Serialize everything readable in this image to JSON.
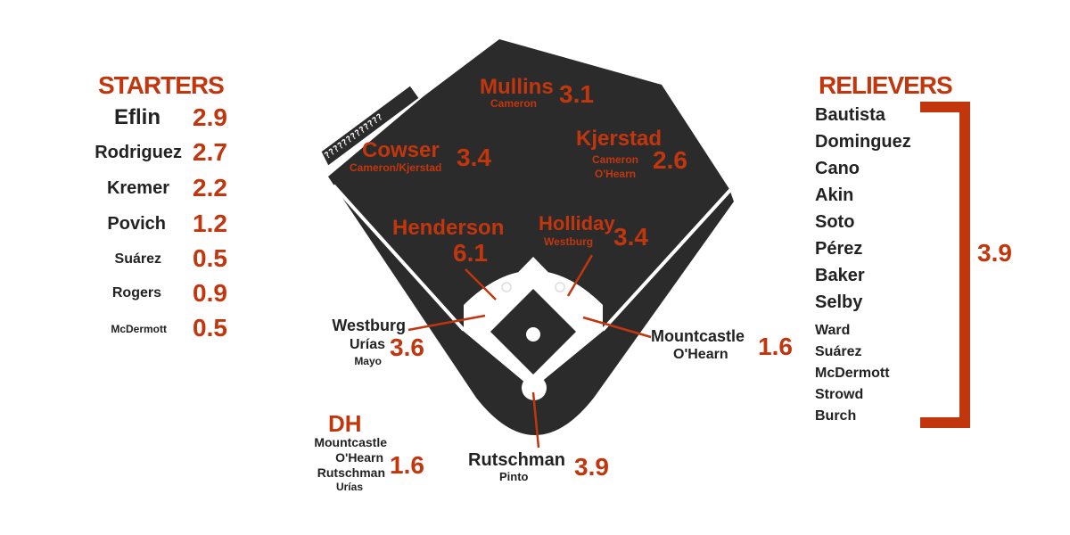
{
  "colors": {
    "accent": "#c2360e",
    "dark": "#2b2b2b",
    "field_text": "#222222"
  },
  "starters": {
    "heading": "STARTERS",
    "rows": [
      {
        "name": "Eflin",
        "value": "2.9"
      },
      {
        "name": "Rodriguez",
        "value": "2.7"
      },
      {
        "name": "Kremer",
        "value": "2.2"
      },
      {
        "name": "Povich",
        "value": "1.2"
      },
      {
        "name": "Suárez",
        "value": "0.5"
      },
      {
        "name": "Rogers",
        "value": "0.9"
      },
      {
        "name": "McDermott",
        "value": "0.5"
      }
    ]
  },
  "relievers": {
    "heading": "RELIEVERS",
    "names": [
      "Bautista",
      "Dominguez",
      "Cano",
      "Akin",
      "Soto",
      "Pérez",
      "Baker",
      "Selby",
      "Ward",
      "Suárez",
      "McDermott",
      "Strowd",
      "Burch"
    ],
    "value": "3.9"
  },
  "field": {
    "scoreboard": "?????????????",
    "cf": {
      "name": "Mullins",
      "backups": [
        "Cameron"
      ],
      "value": "3.1"
    },
    "lf": {
      "name": "Cowser",
      "backups": [
        "Cameron/Kjerstad"
      ],
      "value": "3.4"
    },
    "rf": {
      "name": "Kjerstad",
      "backups": [
        "Cameron",
        "O'Hearn"
      ],
      "value": "2.6"
    },
    "ss": {
      "name": "Henderson",
      "backups": [],
      "value": "6.1"
    },
    "2b": {
      "name": "Holliday",
      "backups": [
        "Westburg"
      ],
      "value": "3.4"
    },
    "3b": {
      "name": "Westburg",
      "backups": [
        "Urías",
        "Mayo"
      ],
      "value": "3.6"
    },
    "1b": {
      "name": "Mountcastle",
      "backups": [
        "O'Hearn"
      ],
      "value": "1.6"
    },
    "c": {
      "name": "Rutschman",
      "backups": [
        "Pinto"
      ],
      "value": "3.9"
    }
  },
  "dh": {
    "heading": "DH",
    "names": [
      "Mountcastle",
      "O'Hearn",
      "Rutschman",
      "Urías"
    ],
    "value": "1.6"
  }
}
